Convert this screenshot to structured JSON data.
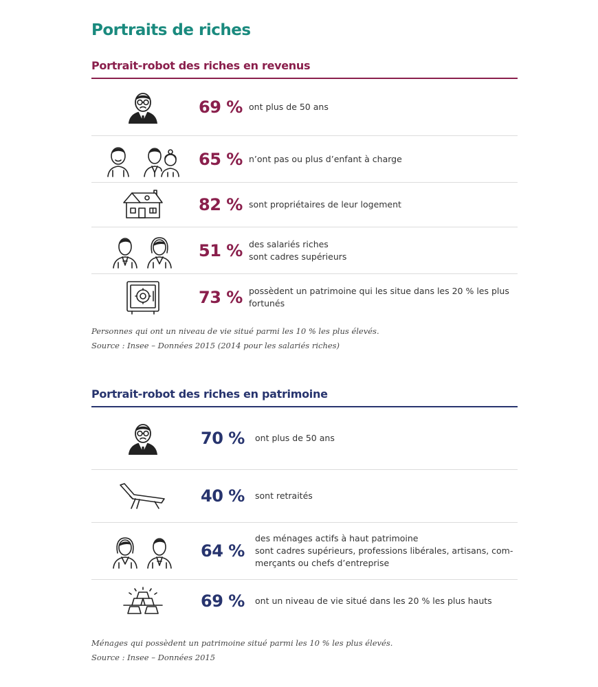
{
  "page_title": "Portraits de riches",
  "income_section": {
    "heading": "Portrait-robot des riches en revenus",
    "rows": [
      {
        "icon": "older-man-icon",
        "percent": "69 %",
        "lines": [
          "ont plus de 50 ans"
        ]
      },
      {
        "icon": "family-icon",
        "percent": "65 %",
        "lines": [
          "n’ont pas ou plus d’enfant à charge"
        ]
      },
      {
        "icon": "house-icon",
        "percent": "82 %",
        "lines": [
          "sont propriétaires de leur logement"
        ]
      },
      {
        "icon": "professionals-icon",
        "percent": "51 %",
        "lines": [
          "des salariés riches",
          "sont cadres supérieurs"
        ]
      },
      {
        "icon": "safe-icon",
        "percent": "73 %",
        "lines": [
          "possèdent un patrimoine qui les situe dans les 20 % les plus",
          "fortunés"
        ]
      }
    ],
    "note": [
      "Personnes qui ont un niveau de vie situé parmi les 10 % les plus élevés.",
      "Source : Insee – Données 2015 (2014 pour les salariés riches)"
    ]
  },
  "wealth_section": {
    "heading": "Portrait-robot des riches en patrimoine",
    "rows": [
      {
        "icon": "older-man-icon",
        "percent": "70 %",
        "lines": [
          "ont plus de 50 ans"
        ]
      },
      {
        "icon": "deck-chair-icon",
        "percent": "40 %",
        "lines": [
          "sont retraités"
        ]
      },
      {
        "icon": "professionals-icon",
        "percent": "64 %",
        "lines": [
          "des ménages actifs à haut patrimoine",
          "sont cadres supérieurs, professions libérales, artisans, com-",
          "merçants ou chefs d’entreprise"
        ]
      },
      {
        "icon": "gold-bars-icon",
        "percent": "69 %",
        "lines": [
          "ont un niveau de vie situé dans les 20 % les plus hauts"
        ]
      }
    ],
    "note": [
      "Ménages qui possèdent un patrimoine situé parmi les 10 % les plus élevés.",
      "Source : Insee – Données 2015"
    ]
  }
}
